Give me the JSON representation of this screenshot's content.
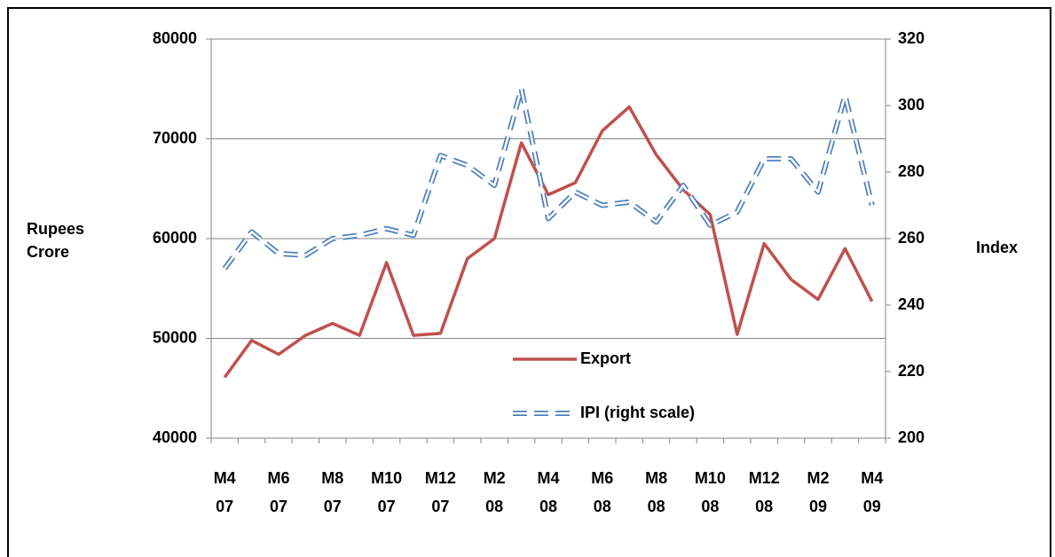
{
  "chart_data": {
    "type": "line",
    "categories": [
      "M4\n07",
      null,
      "M6\n07",
      null,
      "M8\n07",
      null,
      "M10\n07",
      null,
      "M12\n07",
      null,
      "M2\n08",
      null,
      "M4\n08",
      null,
      "M6\n08",
      null,
      "M8\n08",
      null,
      "M10\n08",
      null,
      "M12\n08",
      null,
      "M2\n09",
      null,
      "M4\n09"
    ],
    "series": [
      {
        "name": "Export",
        "color": "#c0504d",
        "values": [
          46100,
          49800,
          48400,
          50300,
          51500,
          50300,
          57600,
          50300,
          50500,
          58000,
          60000,
          69600,
          64400,
          65600,
          70800,
          73200,
          68400,
          64900,
          62400,
          50400,
          59500,
          55900,
          53900,
          59000,
          53700
        ]
      },
      {
        "name": "IPI (right scale)",
        "color": "#4f81bd",
        "axis": "y2",
        "dashed": true,
        "values": [
          251,
          262,
          255.5,
          255,
          260,
          261,
          263,
          261,
          285,
          282,
          276,
          305,
          266,
          274,
          270,
          271,
          265,
          276,
          264,
          268,
          284,
          284,
          274,
          303,
          270
        ]
      }
    ],
    "ylabel": "Rupees\nCrore",
    "y2label": "Index",
    "ylim": [
      40000,
      80000
    ],
    "yticks": [
      40000,
      50000,
      60000,
      70000,
      80000
    ],
    "y2lim": [
      200,
      320
    ],
    "y2ticks": [
      200,
      220,
      240,
      260,
      280,
      300,
      320
    ],
    "grid": true,
    "legend": "bottom"
  }
}
